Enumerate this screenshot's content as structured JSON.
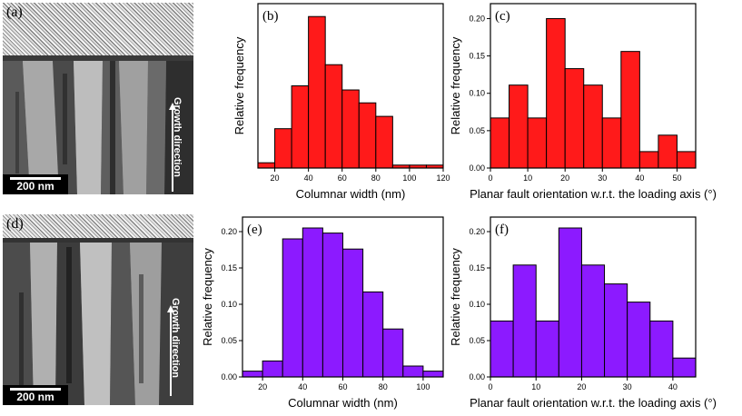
{
  "tem_panels": [
    {
      "label": "(a)",
      "scale_bar": "200 nm",
      "direction_text": "Growth direction"
    },
    {
      "label": "(d)",
      "scale_bar": "200 nm",
      "direction_text": "Growth direction"
    }
  ],
  "colors": {
    "red": "#ff1a1a",
    "purple": "#8c1aff",
    "edge": "#000000"
  },
  "chart_data": [
    {
      "type": "bar",
      "panel": "(b)",
      "xlabel": "Columnar width (nm)",
      "ylabel": "Relative frequency",
      "xlim": [
        10,
        120
      ],
      "ylim": [
        0,
        0.28
      ],
      "xticks": [
        20,
        40,
        60,
        80,
        100,
        120
      ],
      "yticks": [],
      "bin_edges": [
        10,
        20,
        30,
        40,
        50,
        60,
        70,
        80,
        90,
        100,
        110,
        120
      ],
      "values": [
        0.009,
        0.067,
        0.14,
        0.258,
        0.176,
        0.133,
        0.111,
        0.088,
        0.005,
        0.005,
        0.005
      ],
      "color": "#ff1a1a"
    },
    {
      "type": "bar",
      "panel": "(c)",
      "xlabel": "Planar fault orientation w.r.t. the loading axis (°)",
      "ylabel": "Relative frequency",
      "xlim": [
        0,
        55
      ],
      "ylim": [
        0,
        0.22
      ],
      "xticks": [
        0,
        10,
        20,
        30,
        40,
        50
      ],
      "yticks": [
        0.0,
        0.05,
        0.1,
        0.15,
        0.2
      ],
      "ytick_labels": [
        "0.00",
        "0.05",
        "0.10",
        "0.15",
        "0.20"
      ],
      "bin_edges": [
        0,
        5,
        10,
        15,
        20,
        25,
        30,
        35,
        40,
        45,
        50,
        55
      ],
      "values": [
        0.067,
        0.111,
        0.067,
        0.2,
        0.133,
        0.111,
        0.067,
        0.156,
        0.022,
        0.044,
        0.022
      ],
      "color": "#ff1a1a"
    },
    {
      "type": "bar",
      "panel": "(e)",
      "xlabel": "Columnar width (nm)",
      "ylabel": "Relative frequency",
      "xlim": [
        10,
        110
      ],
      "ylim": [
        0,
        0.22
      ],
      "xticks": [
        20,
        40,
        60,
        80,
        100
      ],
      "yticks": [
        0.0,
        0.05,
        0.1,
        0.15,
        0.2
      ],
      "ytick_labels": [
        "0.00",
        "0.05",
        "0.10",
        "0.15",
        "0.20"
      ],
      "bin_edges": [
        10,
        20,
        30,
        40,
        50,
        60,
        70,
        80,
        90,
        100,
        110
      ],
      "values": [
        0.008,
        0.022,
        0.19,
        0.205,
        0.198,
        0.176,
        0.117,
        0.066,
        0.015,
        0.008
      ],
      "color": "#8c1aff"
    },
    {
      "type": "bar",
      "panel": "(f)",
      "xlabel": "Planar fault orientation w.r.t. the loading axis (°)",
      "ylabel": "Relative frequency",
      "xlim": [
        0,
        45
      ],
      "ylim": [
        0,
        0.22
      ],
      "xticks": [
        0,
        10,
        20,
        30,
        40
      ],
      "yticks": [
        0.0,
        0.05,
        0.1,
        0.15,
        0.2
      ],
      "ytick_labels": [
        "0.00",
        "0.05",
        "0.10",
        "0.15",
        "0.20"
      ],
      "bin_edges": [
        0,
        5,
        10,
        15,
        20,
        25,
        30,
        35,
        40,
        45
      ],
      "values": [
        0.077,
        0.154,
        0.077,
        0.205,
        0.154,
        0.128,
        0.103,
        0.077,
        0.026
      ],
      "color": "#8c1aff"
    }
  ]
}
